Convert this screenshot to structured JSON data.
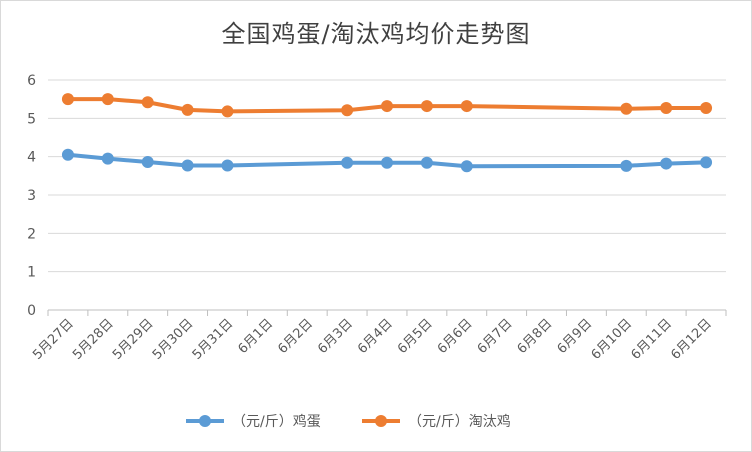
{
  "chart_data": {
    "type": "line",
    "title": "全国鸡蛋/淘汰鸡均价走势图",
    "xlabel": "",
    "ylabel": "",
    "ylim": [
      0,
      6
    ],
    "yticks": [
      "0",
      "1",
      "2",
      "3",
      "4",
      "5",
      "6"
    ],
    "grid": "horizontal",
    "legend_position": "bottom",
    "categories": [
      "5月27日",
      "5月28日",
      "5月29日",
      "5月30日",
      "5月31日",
      "6月1日",
      "6月2日",
      "6月3日",
      "6月4日",
      "6月5日",
      "6月6日",
      "6月7日",
      "6月8日",
      "6月9日",
      "6月10日",
      "6月11日",
      "6月12日"
    ],
    "series": [
      {
        "name": "（元/斤）鸡蛋",
        "color": "#5b9bd5",
        "values": [
          4.05,
          3.95,
          3.86,
          3.77,
          3.77,
          null,
          null,
          3.84,
          3.84,
          3.84,
          3.75,
          null,
          null,
          null,
          3.76,
          3.82,
          3.85
        ]
      },
      {
        "name": "（元/斤）淘汰鸡",
        "color": "#ed7d31",
        "values": [
          5.5,
          5.5,
          5.42,
          5.22,
          5.18,
          null,
          null,
          5.21,
          5.32,
          5.32,
          5.32,
          null,
          null,
          null,
          5.25,
          5.27,
          5.27
        ]
      }
    ]
  }
}
